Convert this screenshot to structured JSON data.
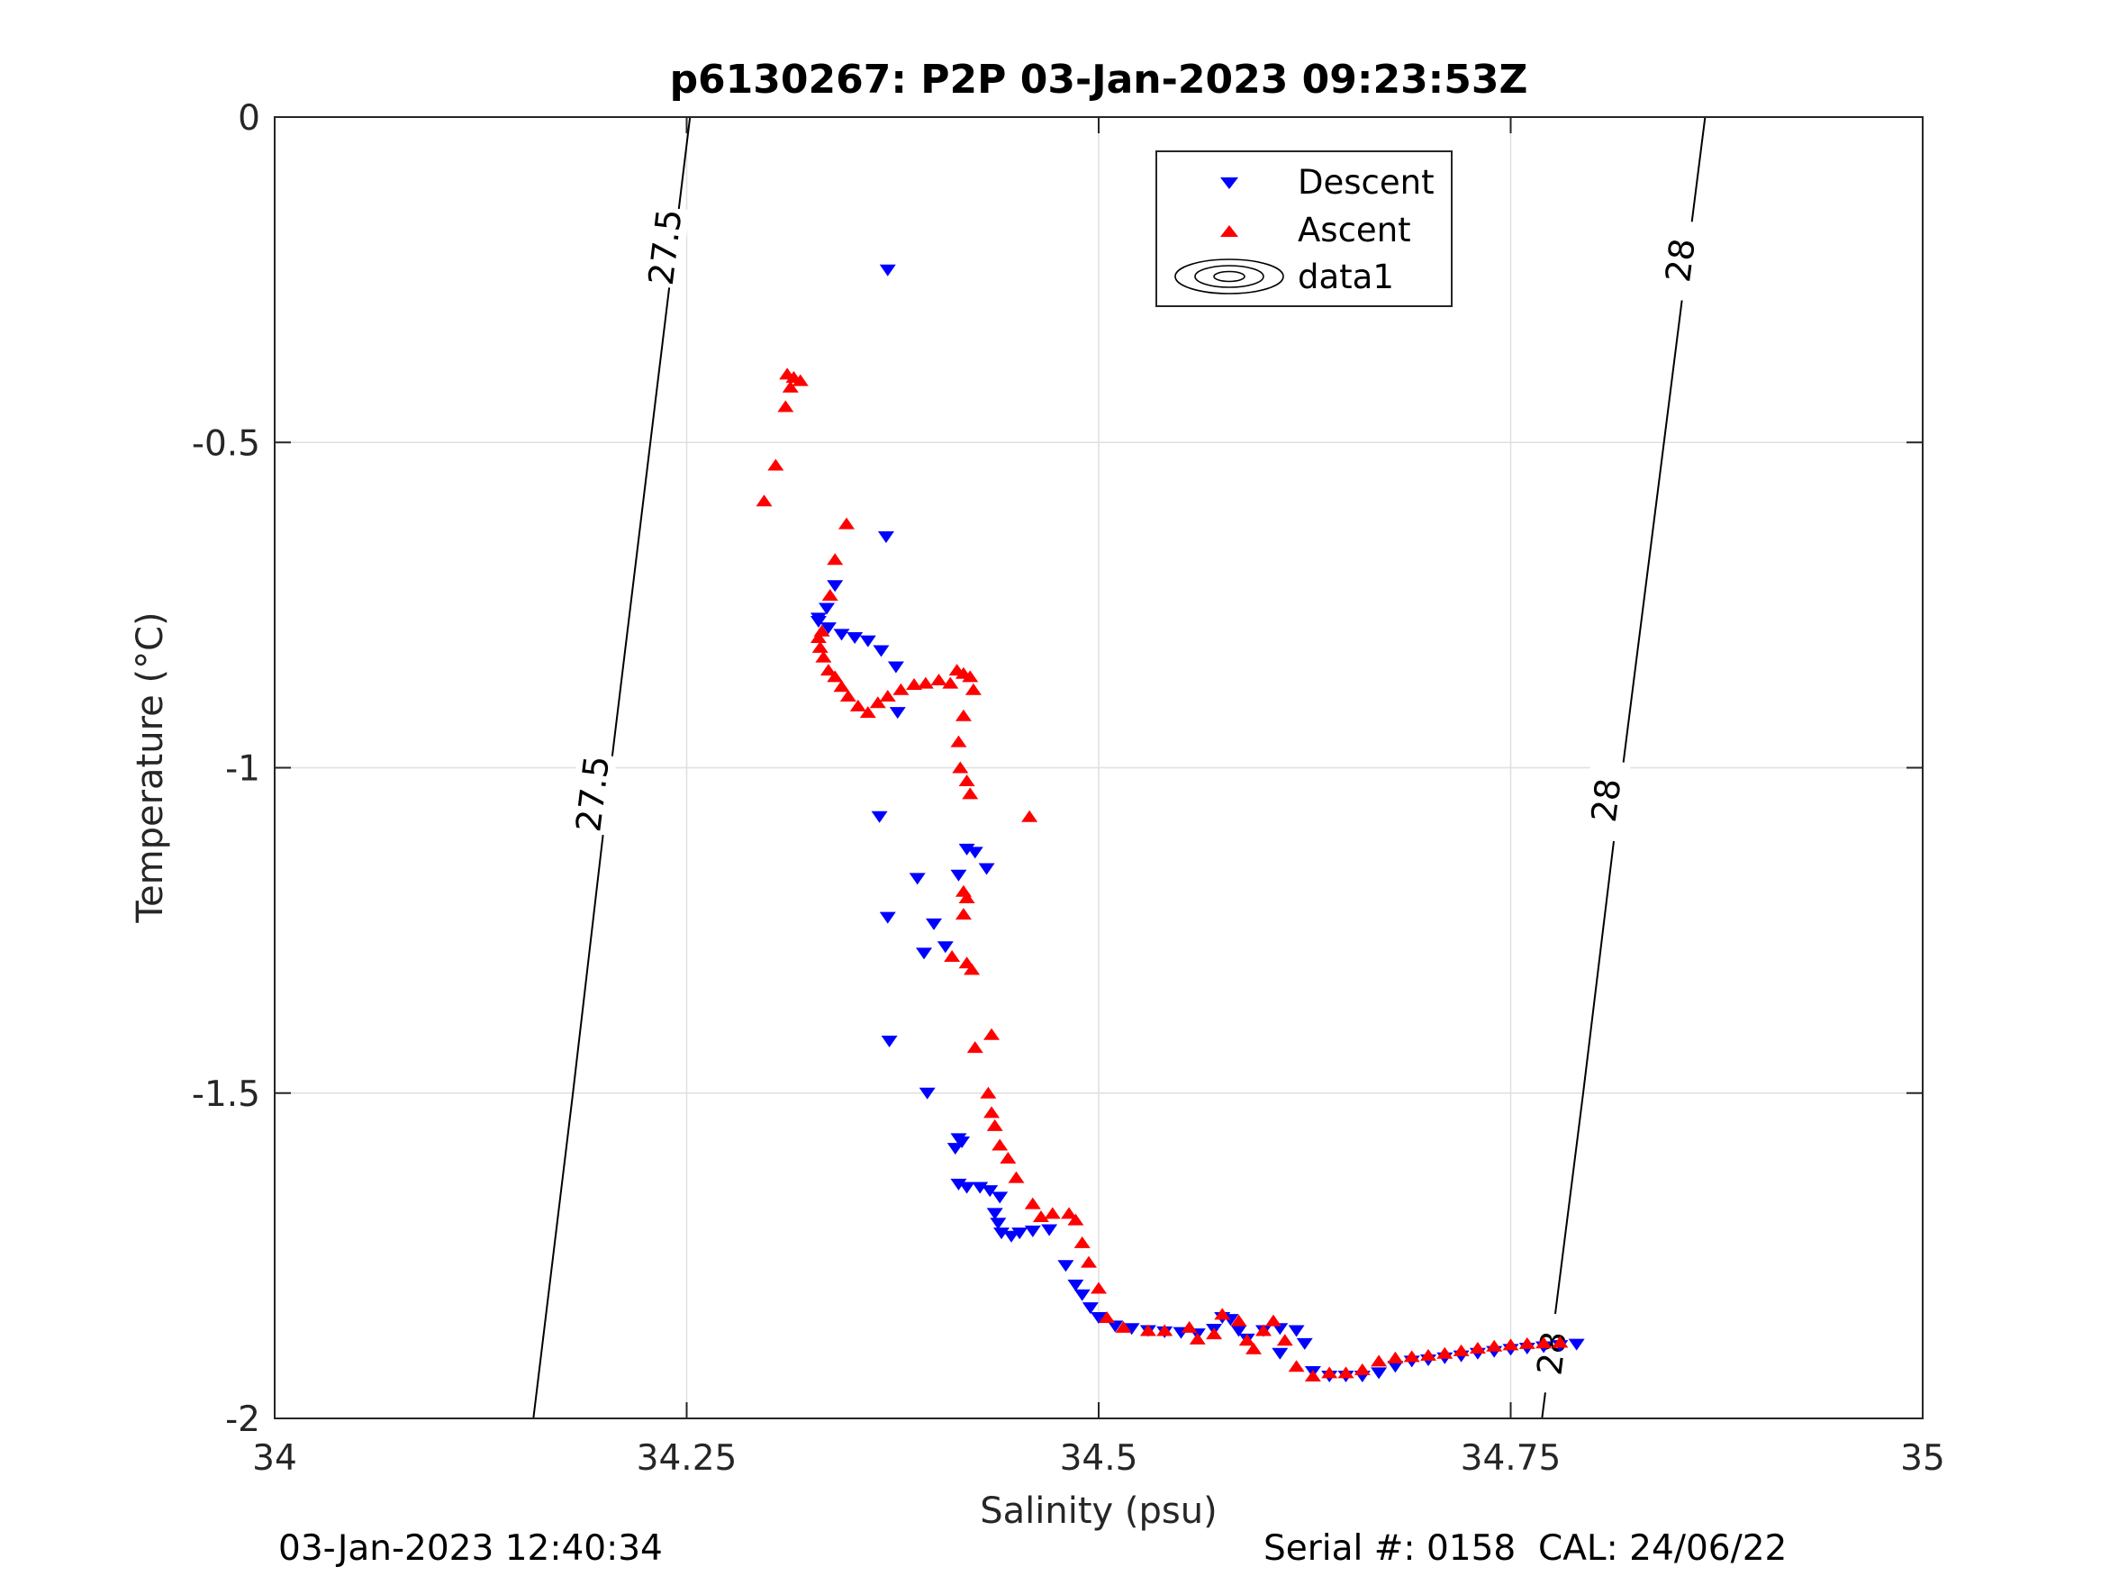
{
  "chart_data": {
    "type": "scatter",
    "title": "p6130267: P2P 03-Jan-2023 09:23:53Z",
    "xlabel": "Salinity (psu)",
    "ylabel": "Temperature (°C)",
    "xlim": [
      34,
      35
    ],
    "ylim": [
      -2,
      0
    ],
    "x_ticks": [
      34,
      34.25,
      34.5,
      34.75,
      35
    ],
    "x_tick_labels": [
      "34",
      "34.25",
      "34.5",
      "34.75",
      "35"
    ],
    "y_ticks": [
      -2,
      -1.5,
      -1,
      -0.5,
      0
    ],
    "y_tick_labels": [
      "-2",
      "-1.5",
      "-1",
      "-0.5",
      "0"
    ],
    "grid": true,
    "legend": {
      "position": "top-right",
      "entries": [
        {
          "label": "Descent",
          "marker": "triangle-down",
          "color": "#0000ff"
        },
        {
          "label": "Ascent",
          "marker": "triangle-up",
          "color": "#ff0000"
        },
        {
          "label": "data1",
          "marker": "contour",
          "color": "#000000"
        }
      ]
    },
    "contours": [
      {
        "level": "27.5",
        "points": [
          [
            34.252,
            0
          ],
          [
            34.228,
            -0.5
          ],
          [
            34.204,
            -1.0
          ],
          [
            34.181,
            -1.5
          ],
          [
            34.157,
            -2.0
          ]
        ],
        "labels": [
          {
            "text": "27.5",
            "x": 34.237,
            "y": -0.2
          },
          {
            "text": "27.5",
            "x": 34.193,
            "y": -1.04
          }
        ]
      },
      {
        "level": "28",
        "points": [
          [
            34.868,
            0
          ],
          [
            34.843,
            -0.5
          ],
          [
            34.818,
            -1.0
          ],
          [
            34.794,
            -1.5
          ],
          [
            34.769,
            -2.0
          ]
        ],
        "labels": [
          {
            "text": "28",
            "x": 34.853,
            "y": -0.22
          },
          {
            "text": "28",
            "x": 34.808,
            "y": -1.05
          },
          {
            "text": "28",
            "x": 34.775,
            "y": -1.9
          }
        ]
      }
    ],
    "series": [
      {
        "name": "Descent",
        "marker": "triangle-down",
        "color": "#0000ff",
        "points": [
          [
            34.372,
            -0.235
          ],
          [
            34.371,
            -0.645
          ],
          [
            34.34,
            -0.72
          ],
          [
            34.335,
            -0.755
          ],
          [
            34.33,
            -0.77
          ],
          [
            34.33,
            -0.775
          ],
          [
            34.336,
            -0.785
          ],
          [
            34.344,
            -0.795
          ],
          [
            34.352,
            -0.8
          ],
          [
            34.36,
            -0.805
          ],
          [
            34.368,
            -0.82
          ],
          [
            34.377,
            -0.845
          ],
          [
            34.378,
            -0.915
          ],
          [
            34.367,
            -1.075
          ],
          [
            34.39,
            -1.17
          ],
          [
            34.372,
            -1.23
          ],
          [
            34.415,
            -1.165
          ],
          [
            34.42,
            -1.125
          ],
          [
            34.425,
            -1.13
          ],
          [
            34.432,
            -1.155
          ],
          [
            34.4,
            -1.24
          ],
          [
            34.394,
            -1.285
          ],
          [
            34.407,
            -1.275
          ],
          [
            34.373,
            -1.42
          ],
          [
            34.396,
            -1.5
          ],
          [
            34.413,
            -1.585
          ],
          [
            34.415,
            -1.57
          ],
          [
            34.417,
            -1.575
          ],
          [
            34.415,
            -1.64
          ],
          [
            34.42,
            -1.645
          ],
          [
            34.428,
            -1.645
          ],
          [
            34.434,
            -1.65
          ],
          [
            34.44,
            -1.66
          ],
          [
            34.437,
            -1.685
          ],
          [
            34.439,
            -1.7
          ],
          [
            34.441,
            -1.715
          ],
          [
            34.447,
            -1.72
          ],
          [
            34.452,
            -1.715
          ],
          [
            34.46,
            -1.712
          ],
          [
            34.47,
            -1.71
          ],
          [
            34.48,
            -1.765
          ],
          [
            34.486,
            -1.795
          ],
          [
            34.49,
            -1.81
          ],
          [
            34.495,
            -1.83
          ],
          [
            34.5,
            -1.845
          ],
          [
            34.51,
            -1.858
          ],
          [
            34.52,
            -1.862
          ],
          [
            34.53,
            -1.865
          ],
          [
            34.54,
            -1.867
          ],
          [
            34.55,
            -1.868
          ],
          [
            34.56,
            -1.87
          ],
          [
            34.57,
            -1.863
          ],
          [
            34.575,
            -1.845
          ],
          [
            34.58,
            -1.848
          ],
          [
            34.585,
            -1.865
          ],
          [
            34.59,
            -1.878
          ],
          [
            34.6,
            -1.865
          ],
          [
            34.61,
            -1.862
          ],
          [
            34.62,
            -1.865
          ],
          [
            34.625,
            -1.885
          ],
          [
            34.61,
            -1.9
          ],
          [
            34.63,
            -1.928
          ],
          [
            34.64,
            -1.935
          ],
          [
            34.65,
            -1.935
          ],
          [
            34.66,
            -1.935
          ],
          [
            34.67,
            -1.93
          ],
          [
            34.68,
            -1.92
          ],
          [
            34.69,
            -1.912
          ],
          [
            34.7,
            -1.91
          ],
          [
            34.71,
            -1.907
          ],
          [
            34.72,
            -1.904
          ],
          [
            34.73,
            -1.9
          ],
          [
            34.74,
            -1.897
          ],
          [
            34.75,
            -1.894
          ],
          [
            34.76,
            -1.892
          ],
          [
            34.77,
            -1.89
          ],
          [
            34.78,
            -1.888
          ],
          [
            34.79,
            -1.886
          ]
        ]
      },
      {
        "name": "Ascent",
        "marker": "triangle-up",
        "color": "#ff0000",
        "points": [
          [
            34.297,
            -0.59
          ],
          [
            34.304,
            -0.535
          ],
          [
            34.31,
            -0.445
          ],
          [
            34.313,
            -0.415
          ],
          [
            34.311,
            -0.395
          ],
          [
            34.315,
            -0.4
          ],
          [
            34.319,
            -0.405
          ],
          [
            34.347,
            -0.625
          ],
          [
            34.34,
            -0.68
          ],
          [
            34.337,
            -0.735
          ],
          [
            34.332,
            -0.79
          ],
          [
            34.33,
            -0.8
          ],
          [
            34.331,
            -0.815
          ],
          [
            34.333,
            -0.83
          ],
          [
            34.336,
            -0.85
          ],
          [
            34.34,
            -0.86
          ],
          [
            34.344,
            -0.875
          ],
          [
            34.348,
            -0.89
          ],
          [
            34.354,
            -0.905
          ],
          [
            34.36,
            -0.915
          ],
          [
            34.366,
            -0.9
          ],
          [
            34.372,
            -0.89
          ],
          [
            34.38,
            -0.88
          ],
          [
            34.388,
            -0.872
          ],
          [
            34.395,
            -0.87
          ],
          [
            34.403,
            -0.865
          ],
          [
            34.41,
            -0.87
          ],
          [
            34.414,
            -0.85
          ],
          [
            34.418,
            -0.855
          ],
          [
            34.422,
            -0.86
          ],
          [
            34.424,
            -0.88
          ],
          [
            34.418,
            -0.92
          ],
          [
            34.415,
            -0.96
          ],
          [
            34.416,
            -1.0
          ],
          [
            34.42,
            -1.02
          ],
          [
            34.422,
            -1.04
          ],
          [
            34.458,
            -1.075
          ],
          [
            34.418,
            -1.19
          ],
          [
            34.42,
            -1.2
          ],
          [
            34.418,
            -1.225
          ],
          [
            34.411,
            -1.29
          ],
          [
            34.42,
            -1.3
          ],
          [
            34.423,
            -1.31
          ],
          [
            34.425,
            -1.43
          ],
          [
            34.435,
            -1.41
          ],
          [
            34.433,
            -1.5
          ],
          [
            34.435,
            -1.53
          ],
          [
            34.437,
            -1.55
          ],
          [
            34.44,
            -1.58
          ],
          [
            34.445,
            -1.6
          ],
          [
            34.45,
            -1.63
          ],
          [
            34.46,
            -1.67
          ],
          [
            34.465,
            -1.69
          ],
          [
            34.472,
            -1.685
          ],
          [
            34.482,
            -1.685
          ],
          [
            34.486,
            -1.695
          ],
          [
            34.49,
            -1.73
          ],
          [
            34.494,
            -1.76
          ],
          [
            34.5,
            -1.8
          ],
          [
            34.505,
            -1.845
          ],
          [
            34.515,
            -1.86
          ],
          [
            34.53,
            -1.865
          ],
          [
            34.54,
            -1.865
          ],
          [
            34.555,
            -1.86
          ],
          [
            34.56,
            -1.878
          ],
          [
            34.57,
            -1.87
          ],
          [
            34.575,
            -1.84
          ],
          [
            34.585,
            -1.85
          ],
          [
            34.59,
            -1.88
          ],
          [
            34.594,
            -1.893
          ],
          [
            34.6,
            -1.865
          ],
          [
            34.606,
            -1.85
          ],
          [
            34.613,
            -1.88
          ],
          [
            34.62,
            -1.92
          ],
          [
            34.63,
            -1.935
          ],
          [
            34.64,
            -1.93
          ],
          [
            34.65,
            -1.93
          ],
          [
            34.66,
            -1.925
          ],
          [
            34.67,
            -1.912
          ],
          [
            34.68,
            -1.907
          ],
          [
            34.69,
            -1.905
          ],
          [
            34.7,
            -1.903
          ],
          [
            34.71,
            -1.9
          ],
          [
            34.72,
            -1.896
          ],
          [
            34.73,
            -1.892
          ],
          [
            34.74,
            -1.889
          ],
          [
            34.75,
            -1.887
          ],
          [
            34.76,
            -1.885
          ],
          [
            34.77,
            -1.884
          ],
          [
            34.78,
            -1.883
          ]
        ]
      }
    ]
  },
  "footer": {
    "date_time": "03-Jan-2023 12:40:34",
    "serial_cal": "Serial #: 0158  CAL: 24/06/22"
  }
}
